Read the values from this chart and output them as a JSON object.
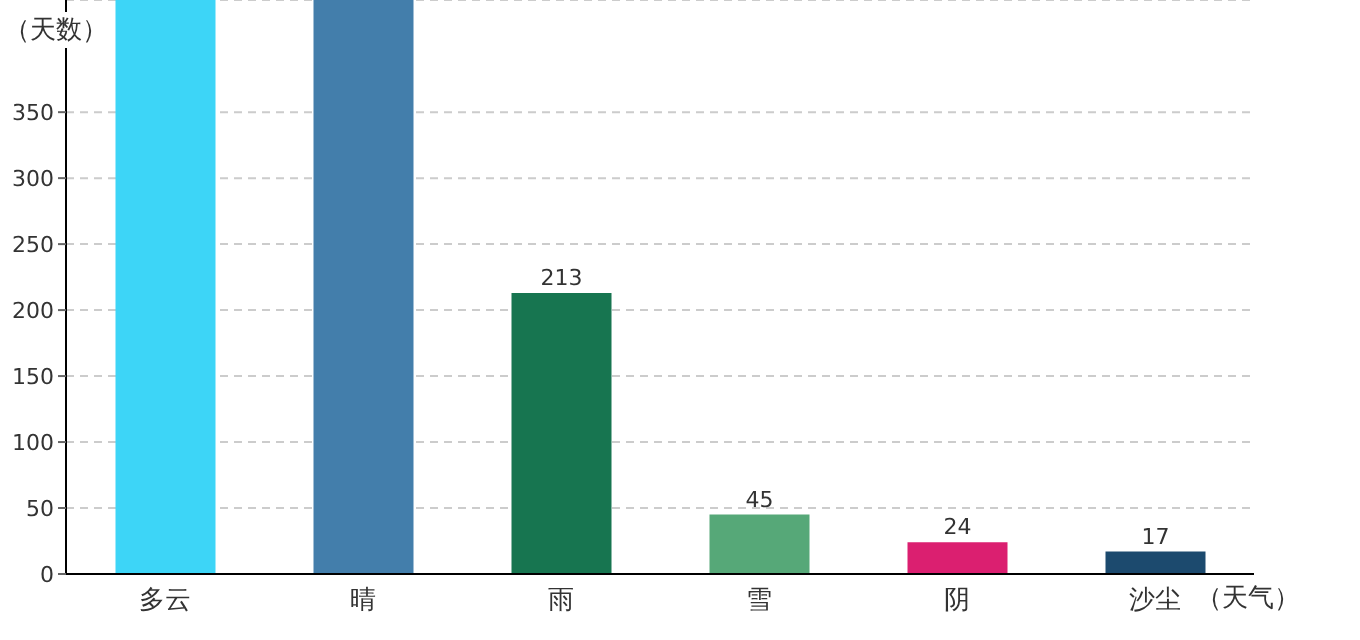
{
  "chart_data": {
    "type": "bar",
    "xlabel": "（天气）",
    "ylabel": "（天数）",
    "categories": [
      "多云",
      "晴",
      "雨",
      "雪",
      "阴",
      "沙尘"
    ],
    "values": [
      435,
      435,
      213,
      45,
      24,
      17
    ],
    "colors": [
      "#3dd5f7",
      "#437eab",
      "#177550",
      "#56a878",
      "#db1f70",
      "#1c4a6e"
    ],
    "value_labels": [
      null,
      null,
      "213",
      "45",
      "24",
      "17"
    ],
    "ylim": [
      0,
      435
    ],
    "yticks": [
      0,
      50,
      100,
      150,
      200,
      250,
      300,
      350
    ],
    "grid": "y"
  }
}
